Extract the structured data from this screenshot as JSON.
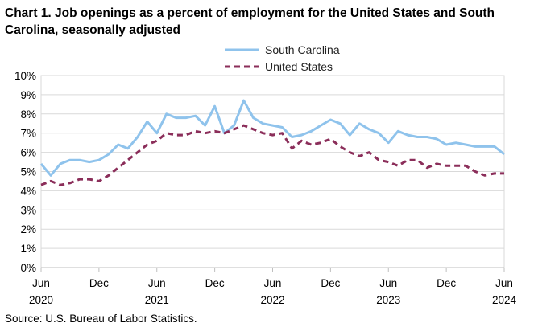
{
  "title": "Chart 1. Job openings as a percent of employment for the United States and South Carolina, seasonally adjusted",
  "source": "Source: U.S. Bureau of Labor Statistics.",
  "chart_data": {
    "type": "line",
    "title": "Chart 1. Job openings as a percent of employment for the United States and South Carolina, seasonally adjusted",
    "xlabel": "",
    "ylabel": "",
    "ylim": [
      0,
      10
    ],
    "y_ticks": [
      "0%",
      "1%",
      "2%",
      "3%",
      "4%",
      "5%",
      "6%",
      "7%",
      "8%",
      "9%",
      "10%"
    ],
    "x_ticks": [
      {
        "month": "Jun",
        "year": "2020"
      },
      {
        "month": "Dec",
        "year": ""
      },
      {
        "month": "Jun",
        "year": "2021"
      },
      {
        "month": "Dec",
        "year": ""
      },
      {
        "month": "Jun",
        "year": "2022"
      },
      {
        "month": "Dec",
        "year": ""
      },
      {
        "month": "Jun",
        "year": "2023"
      },
      {
        "month": "Dec",
        "year": ""
      },
      {
        "month": "Jun",
        "year": "2024"
      }
    ],
    "x": [
      "Jun 2020",
      "Jul 2020",
      "Aug 2020",
      "Sep 2020",
      "Oct 2020",
      "Nov 2020",
      "Dec 2020",
      "Jan 2021",
      "Feb 2021",
      "Mar 2021",
      "Apr 2021",
      "May 2021",
      "Jun 2021",
      "Jul 2021",
      "Aug 2021",
      "Sep 2021",
      "Oct 2021",
      "Nov 2021",
      "Dec 2021",
      "Jan 2022",
      "Feb 2022",
      "Mar 2022",
      "Apr 2022",
      "May 2022",
      "Jun 2022",
      "Jul 2022",
      "Aug 2022",
      "Sep 2022",
      "Oct 2022",
      "Nov 2022",
      "Dec 2022",
      "Jan 2023",
      "Feb 2023",
      "Mar 2023",
      "Apr 2023",
      "May 2023",
      "Jun 2023",
      "Jul 2023",
      "Aug 2023",
      "Sep 2023",
      "Oct 2023",
      "Nov 2023",
      "Dec 2023",
      "Jan 2024",
      "Feb 2024",
      "Mar 2024",
      "Apr 2024",
      "May 2024",
      "Jun 2024"
    ],
    "grid": true,
    "legend_position": "top-center",
    "series": [
      {
        "name": "South Carolina",
        "color": "#8fc3ec",
        "style": "solid",
        "values": [
          5.4,
          4.8,
          5.4,
          5.6,
          5.6,
          5.5,
          5.6,
          5.9,
          6.4,
          6.2,
          6.8,
          7.6,
          7.0,
          8.0,
          7.8,
          7.8,
          7.9,
          7.4,
          8.4,
          7.0,
          7.4,
          8.7,
          7.8,
          7.5,
          7.4,
          7.3,
          6.8,
          6.9,
          7.1,
          7.4,
          7.7,
          7.5,
          6.9,
          7.5,
          7.2,
          7.0,
          6.5,
          7.1,
          6.9,
          6.8,
          6.8,
          6.7,
          6.4,
          6.5,
          6.4,
          6.3,
          6.3,
          6.3,
          5.9
        ]
      },
      {
        "name": "United States",
        "color": "#8b2e5a",
        "style": "dashed",
        "values": [
          4.3,
          4.5,
          4.3,
          4.4,
          4.6,
          4.6,
          4.5,
          4.8,
          5.2,
          5.6,
          6.0,
          6.4,
          6.6,
          7.0,
          6.9,
          6.9,
          7.1,
          7.0,
          7.1,
          7.0,
          7.2,
          7.4,
          7.2,
          7.0,
          6.9,
          7.0,
          6.2,
          6.6,
          6.4,
          6.5,
          6.7,
          6.3,
          6.0,
          5.8,
          6.0,
          5.6,
          5.5,
          5.3,
          5.6,
          5.6,
          5.2,
          5.4,
          5.3,
          5.3,
          5.3,
          5.0,
          4.8,
          4.9,
          4.9
        ]
      }
    ]
  }
}
